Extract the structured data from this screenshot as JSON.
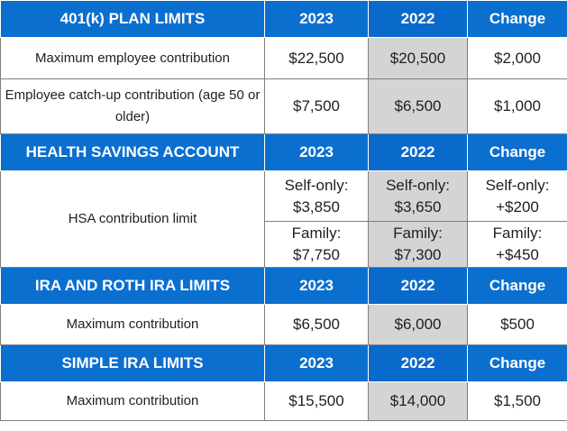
{
  "sections": [
    {
      "header": {
        "label": "401(k) PLAN LIMITS",
        "y2023": "2023",
        "y2022": "2022",
        "change": "Change"
      },
      "rows": [
        {
          "label": "Maximum employee contribution",
          "y2023": "$22,500",
          "y2022": "$20,500",
          "change": "$2,000"
        },
        {
          "label": "Employee catch-up contribution (age 50 or older)",
          "y2023": "$7,500",
          "y2022": "$6,500",
          "change": "$1,000"
        }
      ]
    },
    {
      "header": {
        "label": "HEALTH SAVINGS ACCOUNT",
        "y2023": "2023",
        "y2022": "2022",
        "change": "Change"
      },
      "rows": [
        {
          "label": "HSA contribution limit",
          "self": {
            "y2023": "Self-only: $3,850",
            "y2022": "Self-only: $3,650",
            "change": "Self-only: +$200"
          },
          "family": {
            "y2023": "Family: $7,750",
            "y2022": "Family: $7,300",
            "change": "Family: +$450"
          }
        }
      ]
    },
    {
      "header": {
        "label": "IRA AND ROTH IRA LIMITS",
        "y2023": "2023",
        "y2022": "2022",
        "change": "Change"
      },
      "rows": [
        {
          "label": "Maximum contribution",
          "y2023": "$6,500",
          "y2022": "$6,000",
          "change": "$500"
        }
      ]
    },
    {
      "header": {
        "label": "SIMPLE IRA LIMITS",
        "y2023": "2023",
        "y2022": "2022",
        "change": "Change"
      },
      "rows": [
        {
          "label": "Maximum contribution",
          "y2023": "$15,500",
          "y2022": "$14,000",
          "change": "$1,500"
        }
      ]
    }
  ],
  "colors": {
    "header_bg": "#0b6fcf",
    "header_text": "#ffffff",
    "shaded_col": "#d4d4d4",
    "border": "#7f7f7f"
  }
}
